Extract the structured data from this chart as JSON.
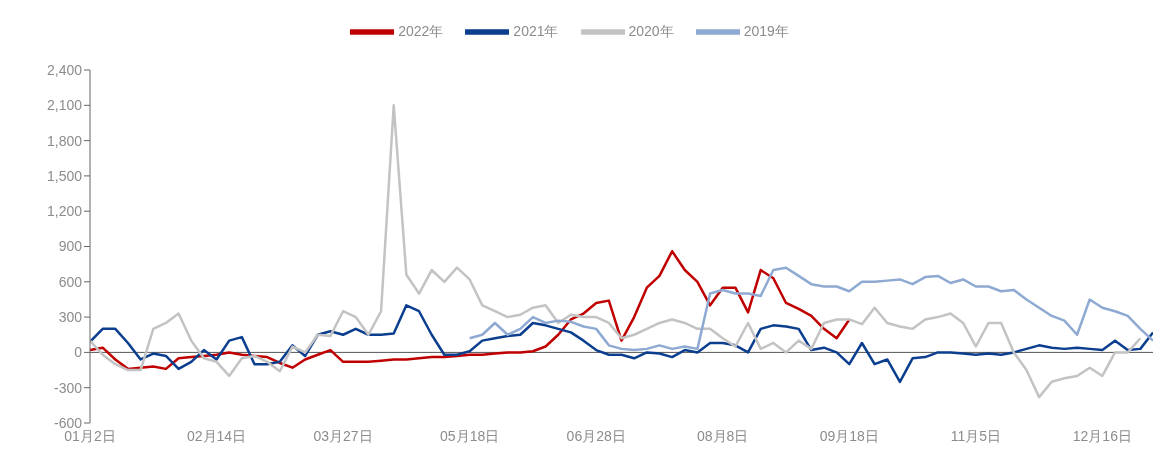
{
  "chart_data": {
    "type": "line",
    "categories": [
      "01月2日",
      null,
      null,
      null,
      null,
      null,
      null,
      null,
      null,
      null,
      "02月14日",
      null,
      null,
      null,
      null,
      null,
      null,
      null,
      null,
      null,
      "03月27日",
      null,
      null,
      null,
      null,
      null,
      null,
      null,
      null,
      null,
      "05月18日",
      null,
      null,
      null,
      null,
      null,
      null,
      null,
      null,
      null,
      "06月28日",
      null,
      null,
      null,
      null,
      null,
      null,
      null,
      null,
      null,
      "08月8日",
      null,
      null,
      null,
      null,
      null,
      null,
      null,
      null,
      null,
      "09月18日",
      null,
      null,
      null,
      null,
      null,
      null,
      null,
      null,
      null,
      "11月5日",
      null,
      null,
      null,
      null,
      null,
      null,
      null,
      null,
      null,
      "12月16日",
      null,
      null,
      null,
      null
    ],
    "series": [
      {
        "name": "2022年",
        "color": "#c00000",
        "values": [
          20,
          40,
          -60,
          -140,
          -130,
          -120,
          -140,
          -50,
          -40,
          -30,
          -20,
          0,
          -20,
          -30,
          -40,
          -90,
          -130,
          -60,
          -20,
          20,
          -80,
          -80,
          -80,
          -70,
          -60,
          -60,
          -50,
          -40,
          -40,
          -30,
          -20,
          -20,
          -10,
          0,
          0,
          10,
          50,
          150,
          280,
          330,
          420,
          440,
          100,
          300,
          550,
          650,
          860,
          700,
          600,
          400,
          550,
          550,
          340,
          700,
          630,
          420,
          370,
          310,
          200,
          120,
          280,
          null,
          null,
          null,
          null,
          null,
          null,
          null,
          null,
          null,
          null,
          null,
          null,
          null,
          null,
          null,
          null,
          null,
          null,
          null,
          null,
          null,
          null,
          null,
          null
        ]
      },
      {
        "name": "2021年",
        "color": "#0b3e8e",
        "values": [
          90,
          200,
          200,
          80,
          -60,
          -10,
          -30,
          -140,
          -80,
          20,
          -60,
          100,
          130,
          -100,
          -100,
          -80,
          60,
          -30,
          150,
          180,
          150,
          200,
          150,
          150,
          160,
          400,
          350,
          150,
          -20,
          -20,
          10,
          100,
          120,
          140,
          150,
          250,
          230,
          200,
          170,
          100,
          20,
          -20,
          -20,
          -50,
          0,
          -10,
          -40,
          20,
          0,
          80,
          80,
          60,
          0,
          200,
          230,
          220,
          200,
          20,
          40,
          0,
          -100,
          80,
          -100,
          -60,
          -250,
          -50,
          -40,
          0,
          0,
          -10,
          -20,
          -10,
          -20,
          0,
          30,
          60,
          40,
          30,
          40,
          30,
          20,
          100,
          20,
          30,
          170
        ]
      },
      {
        "name": "2020年",
        "color": "#c3c3c3",
        "values": [
          100,
          -20,
          -100,
          -150,
          -150,
          200,
          250,
          330,
          100,
          -50,
          -80,
          -200,
          -50,
          -30,
          -80,
          -160,
          50,
          0,
          150,
          140,
          350,
          300,
          150,
          350,
          2100,
          660,
          500,
          700,
          600,
          720,
          620,
          400,
          350,
          300,
          320,
          380,
          400,
          250,
          320,
          300,
          300,
          250,
          120,
          150,
          200,
          250,
          280,
          250,
          200,
          200,
          120,
          50,
          250,
          30,
          80,
          0,
          100,
          30,
          250,
          280,
          280,
          240,
          380,
          250,
          220,
          200,
          280,
          300,
          330,
          250,
          50,
          250,
          250,
          0,
          -150,
          -380,
          -250,
          -220,
          -200,
          -130,
          -200,
          0,
          0,
          120,
          null
        ]
      },
      {
        "name": "2019年",
        "color": "#8ea9d2",
        "values": [
          null,
          null,
          null,
          null,
          null,
          null,
          null,
          null,
          null,
          null,
          null,
          null,
          null,
          null,
          null,
          null,
          null,
          null,
          null,
          null,
          null,
          null,
          null,
          null,
          null,
          null,
          null,
          null,
          null,
          null,
          120,
          150,
          250,
          150,
          200,
          300,
          250,
          270,
          260,
          220,
          200,
          60,
          30,
          20,
          30,
          60,
          30,
          50,
          30,
          500,
          530,
          500,
          500,
          480,
          700,
          720,
          650,
          580,
          560,
          560,
          520,
          600,
          600,
          610,
          620,
          580,
          640,
          650,
          590,
          620,
          560,
          560,
          520,
          530,
          450,
          380,
          310,
          270,
          150,
          450,
          380,
          350,
          310,
          200,
          100
        ]
      }
    ],
    "ylim": [
      -600,
      2400
    ],
    "yticks": [
      {
        "value": -600,
        "label": "-600"
      },
      {
        "value": -300,
        "label": "-300"
      },
      {
        "value": 0,
        "label": "0"
      },
      {
        "value": 300,
        "label": "300"
      },
      {
        "value": 600,
        "label": "600"
      },
      {
        "value": 900,
        "label": "900"
      },
      {
        "value": 1200,
        "label": "1,200"
      },
      {
        "value": 1500,
        "label": "1,500"
      },
      {
        "value": 1800,
        "label": "1,800"
      },
      {
        "value": 2100,
        "label": "2,100"
      },
      {
        "value": 2400,
        "label": "2,400"
      }
    ],
    "ref_lines": [
      {
        "axis": "y",
        "value": 0,
        "color": "#555555"
      }
    ],
    "grid": false,
    "legend": "top",
    "marker": "none",
    "line_style": "solid"
  }
}
